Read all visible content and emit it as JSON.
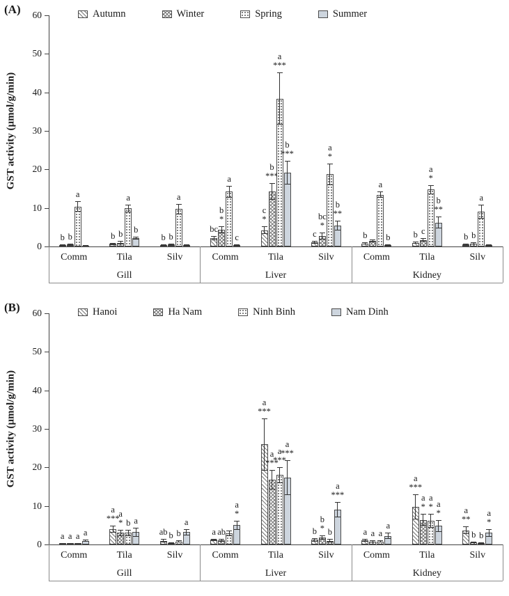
{
  "colors": {
    "background": "#ffffff",
    "bar_outline": "#4a4a4a",
    "hatch": "#767676",
    "solid_fill": "#cdd5de",
    "error_bar": "#303030"
  },
  "chart_data": [
    {
      "type": "bar",
      "panel_label": "(A)",
      "ylabel": "GST activity (µmol/g/min)",
      "ylim": [
        0,
        60
      ],
      "yticks": [
        0,
        10,
        20,
        30,
        40,
        50,
        60
      ],
      "tissues": [
        "Gill",
        "Liver",
        "Kidney"
      ],
      "species": [
        "Comm",
        "Tila",
        "Silv"
      ],
      "categories": [
        "Gill-Comm",
        "Gill-Tila",
        "Gill-Silv",
        "Liver-Comm",
        "Liver-Tila",
        "Liver-Silv",
        "Kidney-Comm",
        "Kidney-Tila",
        "Kidney-Silv"
      ],
      "legend_position": "top",
      "grid": false,
      "series": [
        {
          "name": "Autumn",
          "pattern": "diagonal",
          "values": [
            0.4,
            0.7,
            0.3,
            2.2,
            4.2,
            1.1,
            0.8,
            1.0,
            0.5
          ],
          "errors": [
            0.2,
            0.3,
            0.2,
            0.5,
            1.0,
            0.4,
            0.3,
            0.3,
            0.3
          ],
          "annotations": [
            "b",
            "b",
            "b",
            "bc",
            "c\n*",
            "c",
            "b",
            "b",
            "b"
          ]
        },
        {
          "name": "Winter",
          "pattern": "crosshatch",
          "values": [
            0.5,
            1.0,
            0.5,
            4.3,
            14.3,
            2.7,
            1.5,
            1.7,
            0.8
          ],
          "errors": [
            0.3,
            0.4,
            0.3,
            0.9,
            2.1,
            0.9,
            0.4,
            0.5,
            0.3
          ],
          "annotations": [
            "b",
            "b",
            "b",
            "b\n*",
            "b\n***",
            "bc\n*",
            "",
            "c",
            "b"
          ]
        },
        {
          "name": "Spring",
          "pattern": "dots",
          "values": [
            10.4,
            9.9,
            9.7,
            14.2,
            38.4,
            18.8,
            13.4,
            14.8,
            9.1
          ],
          "errors": [
            1.3,
            1.0,
            1.3,
            1.5,
            6.8,
            2.8,
            0.8,
            1.2,
            1.8
          ],
          "annotations": [
            "a",
            "a",
            "a",
            "a",
            "a\n***",
            "a\n*",
            "a",
            "a\n*",
            "a"
          ]
        },
        {
          "name": "Summer",
          "pattern": "solid",
          "values": [
            0.2,
            2.2,
            0.4,
            0.4,
            19.2,
            5.4,
            0.3,
            6.2,
            0.3
          ],
          "errors": [
            0.1,
            0.4,
            0.2,
            0.2,
            3.1,
            1.3,
            0.2,
            1.5,
            0.2
          ],
          "annotations": [
            "",
            "b",
            "",
            "c",
            "b\n***",
            "b\n**",
            "b",
            "b\n**",
            ""
          ]
        }
      ]
    },
    {
      "type": "bar",
      "panel_label": "(B)",
      "ylabel": "GST activity (µmol/g/min)",
      "ylim": [
        0,
        60
      ],
      "yticks": [
        0,
        10,
        20,
        30,
        40,
        50,
        60
      ],
      "tissues": [
        "Gill",
        "Liver",
        "Kidney"
      ],
      "species": [
        "Comm",
        "Tila",
        "Silv"
      ],
      "categories": [
        "Gill-Comm",
        "Gill-Tila",
        "Gill-Silv",
        "Liver-Comm",
        "Liver-Tila",
        "Liver-Silv",
        "Kidney-Comm",
        "Kidney-Tila",
        "Kidney-Silv"
      ],
      "legend_position": "top",
      "grid": false,
      "series": [
        {
          "name": "Hanoi",
          "pattern": "diagonal",
          "values": [
            0.3,
            4.0,
            1.0,
            1.2,
            26.0,
            1.2,
            1.1,
            9.8,
            3.7
          ],
          "errors": [
            0.1,
            0.9,
            0.4,
            0.3,
            6.8,
            0.4,
            0.3,
            3.2,
            1.0
          ],
          "annotations": [
            "a",
            "a\n***",
            "ab",
            "a",
            "a\n***",
            "b",
            "a",
            "a\n***",
            "a\n**"
          ]
        },
        {
          "name": "Ha Nam",
          "pattern": "crosshatch",
          "values": [
            0.3,
            3.0,
            0.4,
            1.1,
            16.8,
            1.8,
            0.8,
            6.4,
            0.5
          ],
          "errors": [
            0.1,
            0.8,
            0.2,
            0.3,
            2.5,
            0.6,
            0.3,
            1.5,
            0.2
          ],
          "annotations": [
            "a",
            "a\n*",
            "b",
            "ab",
            "a\n***",
            "b\n*",
            "a",
            "a\n*",
            "b"
          ]
        },
        {
          "name": "Ninh Binh",
          "pattern": "dots",
          "values": [
            0.3,
            3.0,
            0.8,
            2.9,
            18.0,
            1.0,
            0.8,
            6.2,
            0.4
          ],
          "errors": [
            0.1,
            0.8,
            0.3,
            0.8,
            2.0,
            0.4,
            0.3,
            1.8,
            0.2
          ],
          "annotations": [
            "a",
            "b",
            "b",
            "",
            "a\n***",
            "b",
            "a",
            "a\n*",
            "b"
          ]
        },
        {
          "name": "Nam Dinh",
          "pattern": "solid",
          "values": [
            1.0,
            3.2,
            3.2,
            5.0,
            17.3,
            9.0,
            2.2,
            4.8,
            3.0
          ],
          "errors": [
            0.3,
            1.2,
            0.8,
            1.2,
            4.5,
            2.0,
            0.8,
            1.5,
            1.0
          ],
          "annotations": [
            "a",
            "a",
            "a",
            "a\n*",
            "a\n***",
            "a\n***",
            "a",
            "a\n*",
            "a\n*"
          ]
        }
      ]
    }
  ]
}
